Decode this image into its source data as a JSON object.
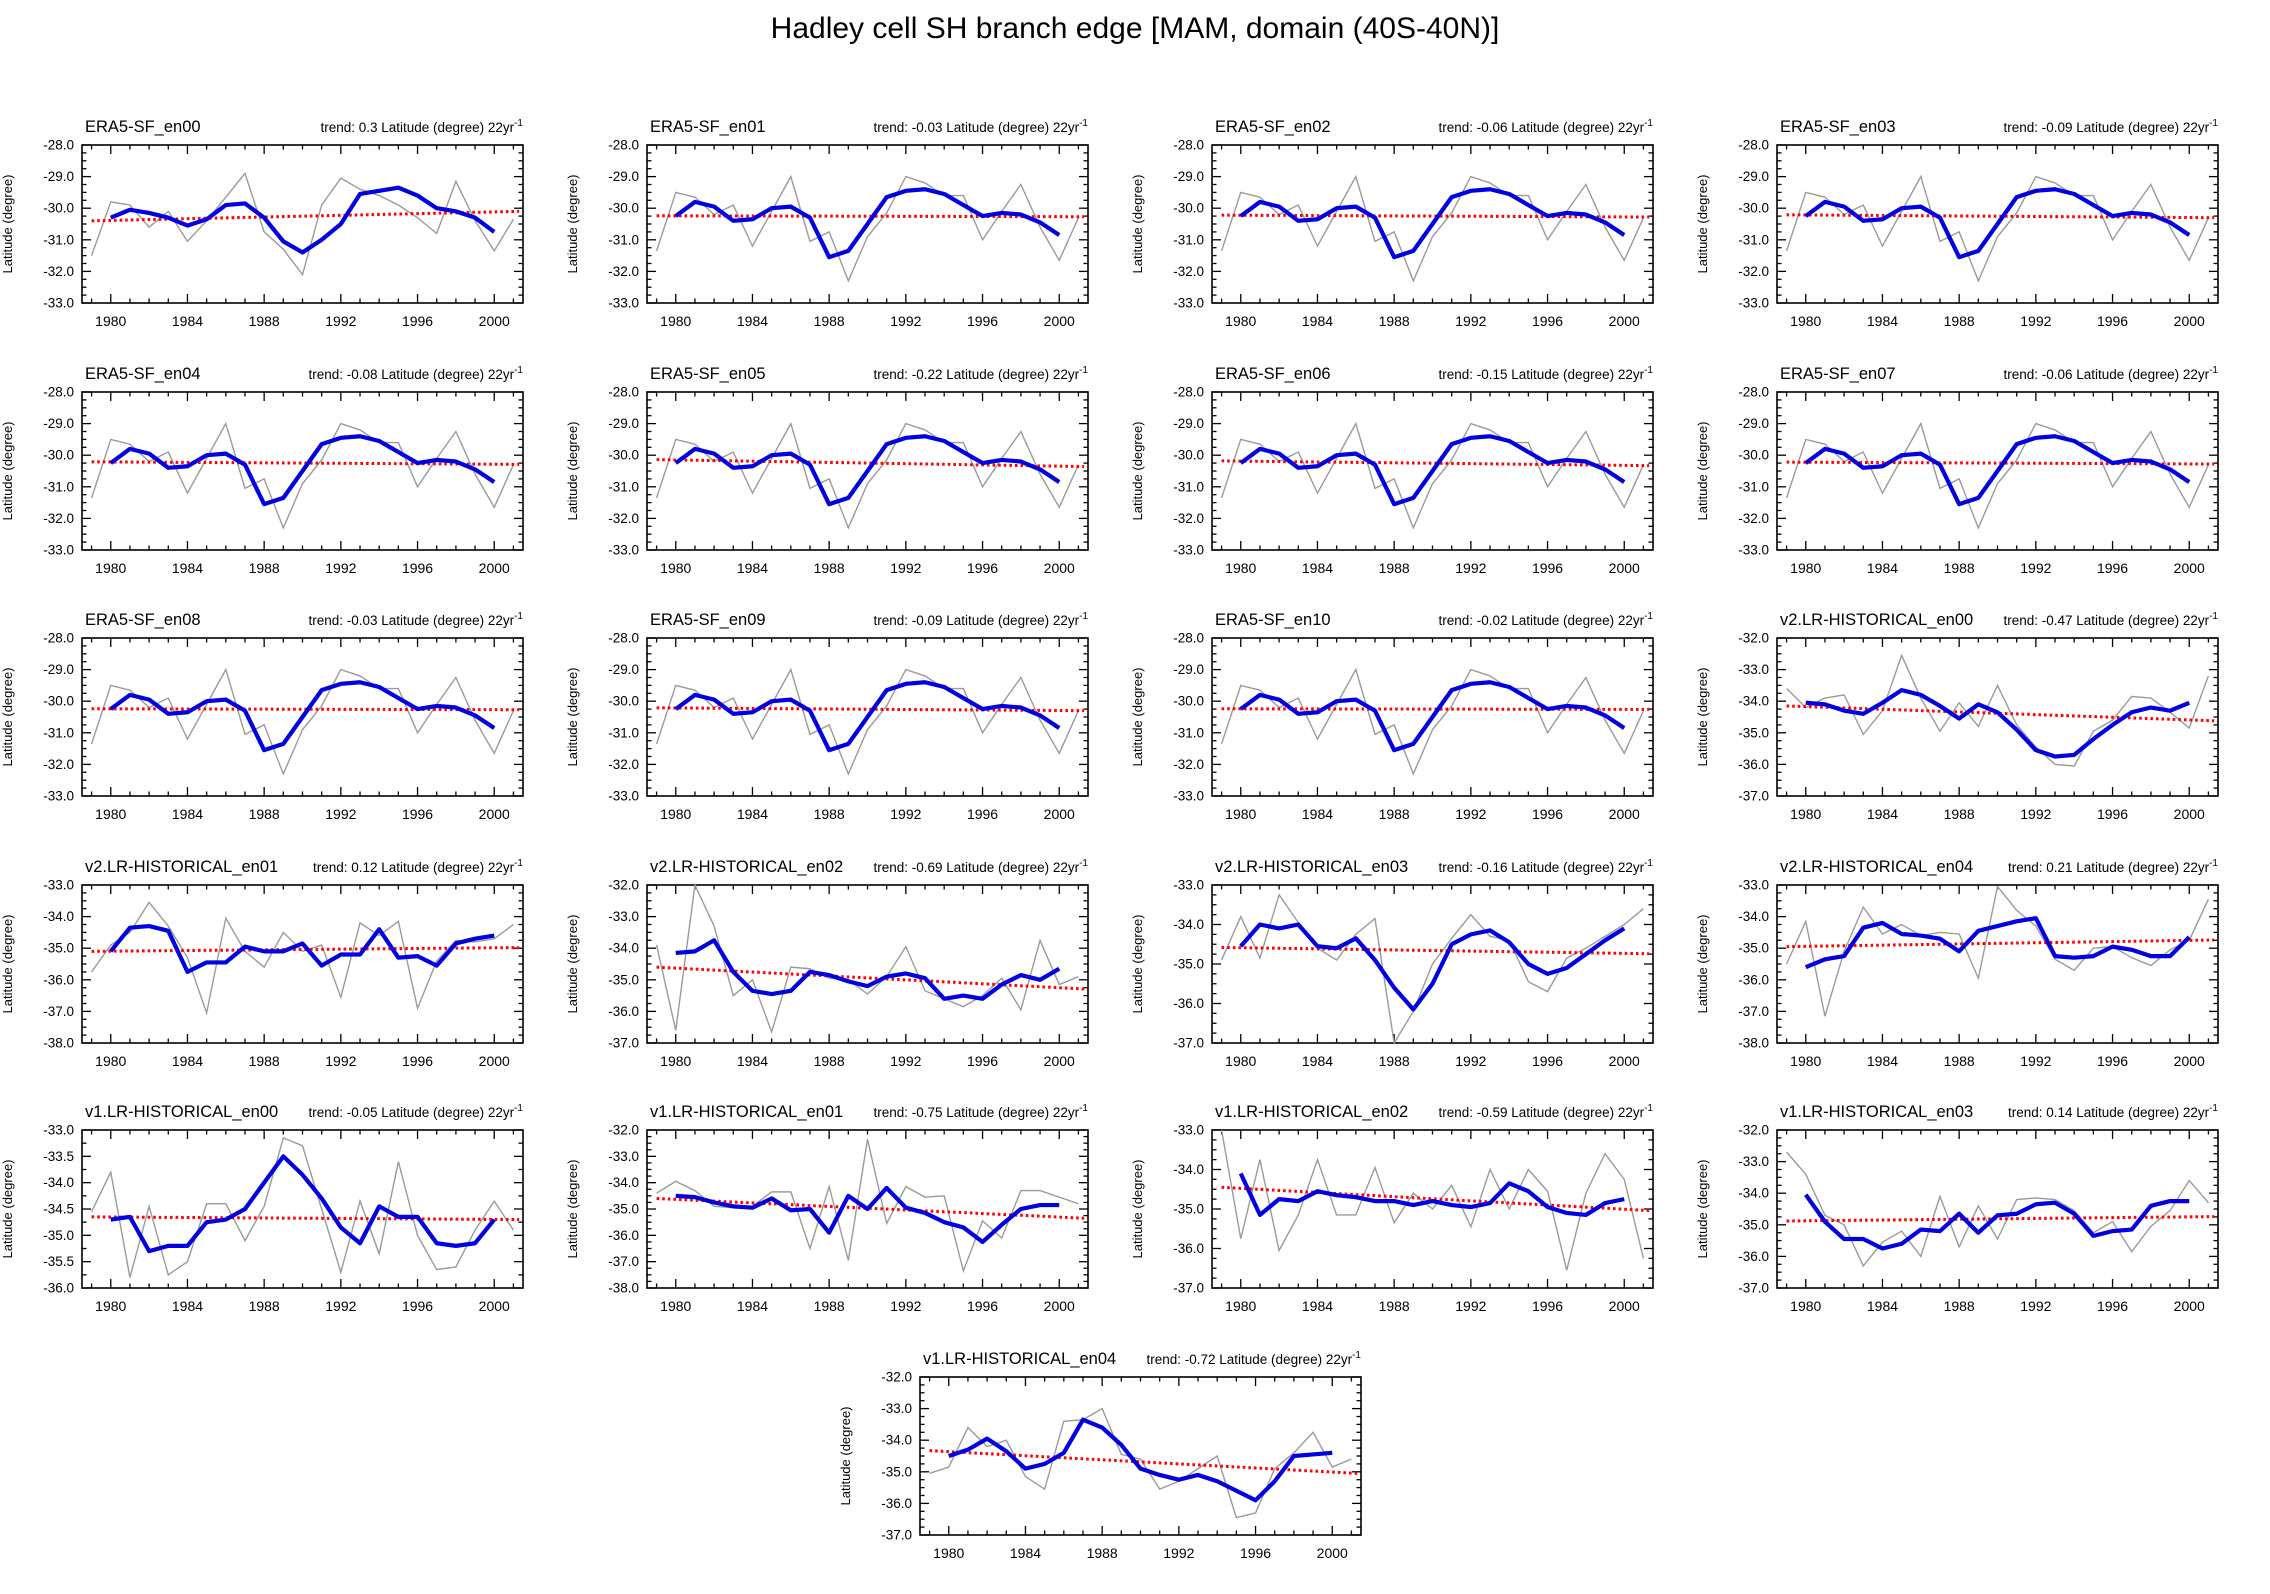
{
  "chart_data": {
    "type": "line",
    "suptitle": "Hadley cell SH branch edge [MAM, domain (40S-40N)]",
    "ylabel": "Latitude (degree)",
    "trend_prefix": "trend: ",
    "trend_unit": " Latitude (degree) 22yr",
    "trend_superscript": "-1",
    "x_range": [
      1978.5,
      2001.5
    ],
    "x_tick_years": [
      1980,
      1984,
      1988,
      1992,
      1996,
      2000
    ],
    "years_annual": [
      1979,
      1980,
      1981,
      1982,
      1983,
      1984,
      1985,
      1986,
      1987,
      1988,
      1989,
      1990,
      1991,
      1992,
      1993,
      1994,
      1995,
      1996,
      1997,
      1998,
      1999,
      2000,
      2001
    ],
    "years_smoothed": [
      1980,
      1981,
      1982,
      1983,
      1984,
      1985,
      1986,
      1987,
      1988,
      1989,
      1990,
      1991,
      1992,
      1993,
      1994,
      1995,
      1996,
      1997,
      1998,
      1999,
      2000
    ],
    "colors": {
      "annual": "#9a9a9a",
      "smoothed": "#0000e0",
      "trend": "#ff0000",
      "axis": "#000000"
    },
    "shared_series": {
      "era5_a_gray": [
        -31.5,
        -29.8,
        -29.9,
        -30.6,
        -30.1,
        -31.05,
        -30.4,
        -29.65,
        -28.9,
        -30.75,
        -31.3,
        -32.1,
        -29.9,
        -29.05,
        -29.4,
        -29.6,
        -29.9,
        -30.3,
        -30.8,
        -29.15,
        -30.4,
        -31.35,
        -30.35
      ],
      "era5_a_blue": [
        -30.3,
        -30.05,
        -30.15,
        -30.3,
        -30.55,
        -30.35,
        -29.9,
        -29.85,
        -30.3,
        -31.05,
        -31.4,
        -31.0,
        -30.5,
        -29.55,
        -29.45,
        -29.35,
        -29.6,
        -30.0,
        -30.1,
        -30.3,
        -30.75
      ],
      "era5_b_gray": [
        -31.35,
        -29.5,
        -29.65,
        -30.2,
        -29.9,
        -31.2,
        -30.1,
        -29.0,
        -31.05,
        -30.75,
        -32.3,
        -30.9,
        -30.15,
        -29.0,
        -29.2,
        -29.6,
        -29.6,
        -31.0,
        -30.1,
        -29.25,
        -30.6,
        -31.65,
        -30.3
      ],
      "era5_b_blue": [
        -30.25,
        -29.8,
        -29.95,
        -30.4,
        -30.35,
        -30.0,
        -29.95,
        -30.3,
        -31.55,
        -31.35,
        -30.5,
        -29.65,
        -29.45,
        -29.4,
        -29.55,
        -29.9,
        -30.25,
        -30.15,
        -30.2,
        -30.45,
        -30.85
      ]
    },
    "panels": [
      {
        "title": "ERA5-SF_en00",
        "trend": "0.3",
        "ylim": [
          -28.0,
          -33.0
        ],
        "ystep": 1.0,
        "gray_ref": "era5_a_gray",
        "blue_ref": "era5_a_blue",
        "red": [
          -30.4,
          -30.1
        ]
      },
      {
        "title": "ERA5-SF_en01",
        "trend": "-0.03",
        "ylim": [
          -28.0,
          -33.0
        ],
        "ystep": 1.0,
        "gray_ref": "era5_b_gray",
        "blue_ref": "era5_b_blue",
        "red": [
          -30.24,
          -30.27
        ]
      },
      {
        "title": "ERA5-SF_en02",
        "trend": "-0.06",
        "ylim": [
          -28.0,
          -33.0
        ],
        "ystep": 1.0,
        "gray_ref": "era5_b_gray",
        "blue_ref": "era5_b_blue",
        "red": [
          -30.22,
          -30.28
        ]
      },
      {
        "title": "ERA5-SF_en03",
        "trend": "-0.09",
        "ylim": [
          -28.0,
          -33.0
        ],
        "ystep": 1.0,
        "gray_ref": "era5_b_gray",
        "blue_ref": "era5_b_blue",
        "red": [
          -30.21,
          -30.3
        ]
      },
      {
        "title": "ERA5-SF_en04",
        "trend": "-0.08",
        "ylim": [
          -28.0,
          -33.0
        ],
        "ystep": 1.0,
        "gray_ref": "era5_b_gray",
        "blue_ref": "era5_b_blue",
        "red": [
          -30.21,
          -30.29
        ]
      },
      {
        "title": "ERA5-SF_en05",
        "trend": "-0.22",
        "ylim": [
          -28.0,
          -33.0
        ],
        "ystep": 1.0,
        "gray_ref": "era5_b_gray",
        "blue_ref": "era5_b_blue",
        "red": [
          -30.14,
          -30.36
        ]
      },
      {
        "title": "ERA5-SF_en06",
        "trend": "-0.15",
        "ylim": [
          -28.0,
          -33.0
        ],
        "ystep": 1.0,
        "gray_ref": "era5_b_gray",
        "blue_ref": "era5_b_blue",
        "red": [
          -30.18,
          -30.33
        ]
      },
      {
        "title": "ERA5-SF_en07",
        "trend": "-0.06",
        "ylim": [
          -28.0,
          -33.0
        ],
        "ystep": 1.0,
        "gray_ref": "era5_b_gray",
        "blue_ref": "era5_b_blue",
        "red": [
          -30.22,
          -30.28
        ]
      },
      {
        "title": "ERA5-SF_en08",
        "trend": "-0.03",
        "ylim": [
          -28.0,
          -33.0
        ],
        "ystep": 1.0,
        "gray_ref": "era5_b_gray",
        "blue_ref": "era5_b_blue",
        "red": [
          -30.24,
          -30.27
        ]
      },
      {
        "title": "ERA5-SF_en09",
        "trend": "-0.09",
        "ylim": [
          -28.0,
          -33.0
        ],
        "ystep": 1.0,
        "gray_ref": "era5_b_gray",
        "blue_ref": "era5_b_blue",
        "red": [
          -30.21,
          -30.3
        ]
      },
      {
        "title": "ERA5-SF_en10",
        "trend": "-0.02",
        "ylim": [
          -28.0,
          -33.0
        ],
        "ystep": 1.0,
        "gray_ref": "era5_b_gray",
        "blue_ref": "era5_b_blue",
        "red": [
          -30.24,
          -30.26
        ]
      },
      {
        "title": "v2.LR-HISTORICAL_en00",
        "trend": "-0.47",
        "ylim": [
          -32.0,
          -37.0
        ],
        "ystep": 1.0,
        "gray": [
          -33.6,
          -34.2,
          -33.9,
          -33.8,
          -35.05,
          -34.3,
          -32.55,
          -33.9,
          -34.95,
          -34.05,
          -34.8,
          -33.5,
          -34.75,
          -35.45,
          -36.0,
          -36.05,
          -34.95,
          -34.6,
          -33.85,
          -33.9,
          -34.35,
          -34.85,
          -33.2
        ],
        "blue": [
          -34.05,
          -34.1,
          -34.3,
          -34.4,
          -34.05,
          -33.65,
          -33.8,
          -34.15,
          -34.55,
          -34.1,
          -34.35,
          -34.9,
          -35.55,
          -35.75,
          -35.7,
          -35.2,
          -34.75,
          -34.35,
          -34.2,
          -34.3,
          -34.05
        ],
        "red": [
          -34.15,
          -34.62
        ]
      },
      {
        "title": "v2.LR-HISTORICAL_en01",
        "trend": "0.12",
        "ylim": [
          -33.0,
          -38.0
        ],
        "ystep": 1.0,
        "gray": [
          -35.75,
          -34.9,
          -34.5,
          -33.55,
          -34.3,
          -35.3,
          -37.05,
          -34.05,
          -35.1,
          -35.6,
          -34.5,
          -35.1,
          -34.9,
          -36.55,
          -34.2,
          -34.6,
          -34.15,
          -36.9,
          -35.4,
          -34.75,
          -34.8,
          -34.7,
          -34.25
        ],
        "blue": [
          -35.1,
          -34.35,
          -34.3,
          -34.45,
          -35.75,
          -35.45,
          -35.45,
          -34.95,
          -35.1,
          -35.1,
          -34.85,
          -35.55,
          -35.2,
          -35.2,
          -34.4,
          -35.3,
          -35.25,
          -35.55,
          -34.85,
          -34.7,
          -34.6
        ],
        "red": [
          -35.1,
          -34.98
        ]
      },
      {
        "title": "v2.LR-HISTORICAL_en02",
        "trend": "-0.69",
        "ylim": [
          -32.0,
          -37.0
        ],
        "ystep": 1.0,
        "gray": [
          -33.9,
          -36.6,
          -32.0,
          -33.3,
          -35.5,
          -35.0,
          -36.65,
          -34.6,
          -34.65,
          -34.95,
          -35.0,
          -35.45,
          -34.9,
          -33.95,
          -35.35,
          -35.6,
          -35.85,
          -35.5,
          -34.95,
          -35.95,
          -33.75,
          -35.15,
          -34.9
        ],
        "blue": [
          -34.15,
          -34.1,
          -33.75,
          -34.75,
          -35.35,
          -35.45,
          -35.35,
          -34.75,
          -34.85,
          -35.05,
          -35.2,
          -34.9,
          -34.8,
          -34.95,
          -35.6,
          -35.5,
          -35.6,
          -35.15,
          -34.85,
          -35.0,
          -34.65
        ],
        "red": [
          -34.6,
          -35.29
        ]
      },
      {
        "title": "v2.LR-HISTORICAL_en03",
        "trend": "-0.16",
        "ylim": [
          -33.0,
          -37.0
        ],
        "ystep": 1.0,
        "gray": [
          -34.9,
          -33.8,
          -34.85,
          -33.25,
          -33.95,
          -34.6,
          -34.9,
          -34.25,
          -33.85,
          -37.0,
          -36.2,
          -35.0,
          -34.35,
          -33.75,
          -34.3,
          -34.4,
          -35.45,
          -35.7,
          -34.85,
          -34.6,
          -34.3,
          -34.0,
          -33.6
        ],
        "blue": [
          -34.55,
          -34.0,
          -34.1,
          -34.0,
          -34.55,
          -34.6,
          -34.35,
          -34.9,
          -35.6,
          -36.15,
          -35.5,
          -34.5,
          -34.25,
          -34.15,
          -34.45,
          -35.0,
          -35.25,
          -35.1,
          -34.75,
          -34.4,
          -34.1
        ],
        "red": [
          -34.58,
          -34.74
        ]
      },
      {
        "title": "v2.LR-HISTORICAL_en04",
        "trend": "0.21",
        "ylim": [
          -33.0,
          -38.0
        ],
        "ystep": 1.0,
        "gray": [
          -35.5,
          -34.15,
          -37.15,
          -35.1,
          -33.7,
          -34.55,
          -34.25,
          -34.6,
          -34.5,
          -34.55,
          -35.95,
          -33.05,
          -33.8,
          -34.3,
          -35.35,
          -35.7,
          -35.0,
          -34.95,
          -35.3,
          -35.55,
          -35.05,
          -34.75,
          -33.45
        ],
        "blue": [
          -35.6,
          -35.35,
          -35.25,
          -34.35,
          -34.2,
          -34.55,
          -34.6,
          -34.7,
          -35.1,
          -34.45,
          -34.3,
          -34.15,
          -34.05,
          -35.25,
          -35.3,
          -35.25,
          -34.95,
          -35.05,
          -35.25,
          -35.25,
          -34.65
        ],
        "red": [
          -34.95,
          -34.74
        ]
      },
      {
        "title": "v1.LR-HISTORICAL_en00",
        "trend": "-0.05",
        "ylim": [
          -33.0,
          -36.0
        ],
        "ystep": 0.5,
        "gray": [
          -34.55,
          -33.8,
          -35.8,
          -34.45,
          -35.75,
          -35.5,
          -34.4,
          -34.4,
          -35.1,
          -34.45,
          -33.15,
          -33.3,
          -34.5,
          -35.7,
          -34.35,
          -35.35,
          -33.6,
          -35.0,
          -35.65,
          -35.6,
          -34.9,
          -34.35,
          -34.9
        ],
        "blue": [
          -34.7,
          -34.65,
          -35.3,
          -35.2,
          -35.2,
          -34.75,
          -34.7,
          -34.5,
          -34.0,
          -33.5,
          -33.85,
          -34.3,
          -34.85,
          -35.15,
          -34.45,
          -34.65,
          -34.65,
          -35.15,
          -35.2,
          -35.15,
          -34.7
        ],
        "red": [
          -34.65,
          -34.7
        ]
      },
      {
        "title": "v1.LR-HISTORICAL_en01",
        "trend": "-0.75",
        "ylim": [
          -32.0,
          -38.0
        ],
        "ystep": 1.0,
        "gray": [
          -34.4,
          -33.95,
          -34.3,
          -34.9,
          -34.95,
          -34.9,
          -34.35,
          -34.35,
          -36.5,
          -34.15,
          -36.95,
          -32.35,
          -35.55,
          -34.15,
          -34.55,
          -34.5,
          -37.35,
          -35.45,
          -36.1,
          -34.3,
          -34.3,
          -34.55,
          -34.8
        ],
        "blue": [
          -34.5,
          -34.55,
          -34.75,
          -34.9,
          -34.95,
          -34.6,
          -35.05,
          -35.0,
          -35.9,
          -34.5,
          -35.0,
          -34.2,
          -34.95,
          -35.15,
          -35.5,
          -35.7,
          -36.25,
          -35.6,
          -35.0,
          -34.85,
          -34.85
        ],
        "red": [
          -34.6,
          -35.35
        ]
      },
      {
        "title": "v1.LR-HISTORICAL_en02",
        "trend": "-0.59",
        "ylim": [
          -33.0,
          -37.0
        ],
        "ystep": 1.0,
        "gray": [
          -33.0,
          -35.75,
          -33.75,
          -36.05,
          -35.15,
          -33.75,
          -35.15,
          -35.15,
          -33.95,
          -35.35,
          -34.6,
          -35.0,
          -34.4,
          -35.45,
          -34.0,
          -35.0,
          -34.0,
          -34.55,
          -36.55,
          -34.6,
          -33.6,
          -34.25,
          -36.25
        ],
        "blue": [
          -34.1,
          -35.15,
          -34.75,
          -34.8,
          -34.55,
          -34.65,
          -34.7,
          -34.8,
          -34.8,
          -34.9,
          -34.8,
          -34.9,
          -34.95,
          -34.85,
          -34.35,
          -34.55,
          -34.95,
          -35.1,
          -35.15,
          -34.85,
          -34.75
        ],
        "red": [
          -34.45,
          -35.04
        ]
      },
      {
        "title": "v1.LR-HISTORICAL_en03",
        "trend": "0.14",
        "ylim": [
          -32.0,
          -37.0
        ],
        "ystep": 1.0,
        "gray": [
          -32.7,
          -33.4,
          -34.7,
          -35.0,
          -36.3,
          -35.55,
          -35.2,
          -36.0,
          -34.1,
          -35.7,
          -34.4,
          -35.45,
          -34.2,
          -34.15,
          -34.2,
          -34.55,
          -35.25,
          -34.9,
          -35.85,
          -35.05,
          -34.55,
          -33.6,
          -34.3
        ],
        "blue": [
          -34.05,
          -34.9,
          -35.45,
          -35.45,
          -35.75,
          -35.6,
          -35.15,
          -35.2,
          -34.65,
          -35.25,
          -34.7,
          -34.65,
          -34.35,
          -34.3,
          -34.65,
          -35.35,
          -35.2,
          -35.15,
          -34.4,
          -34.25,
          -34.25
        ],
        "red": [
          -34.88,
          -34.74
        ]
      },
      {
        "title": "v1.LR-HISTORICAL_en04",
        "trend": "-0.72",
        "ylim": [
          -32.0,
          -37.0
        ],
        "ystep": 1.0,
        "gray": [
          -35.05,
          -34.85,
          -33.6,
          -34.2,
          -34.0,
          -35.15,
          -35.55,
          -33.4,
          -33.35,
          -33.0,
          -34.45,
          -34.6,
          -35.55,
          -35.3,
          -34.9,
          -34.5,
          -36.45,
          -36.3,
          -34.9,
          -34.4,
          -33.75,
          -34.85,
          -34.6
        ],
        "blue": [
          -34.5,
          -34.3,
          -33.95,
          -34.35,
          -34.9,
          -34.75,
          -34.4,
          -33.35,
          -33.6,
          -34.15,
          -34.9,
          -35.1,
          -35.25,
          -35.1,
          -35.3,
          -35.6,
          -35.9,
          -35.3,
          -34.5,
          -34.45,
          -34.4
        ],
        "red": [
          -34.33,
          -35.05
        ]
      }
    ]
  }
}
